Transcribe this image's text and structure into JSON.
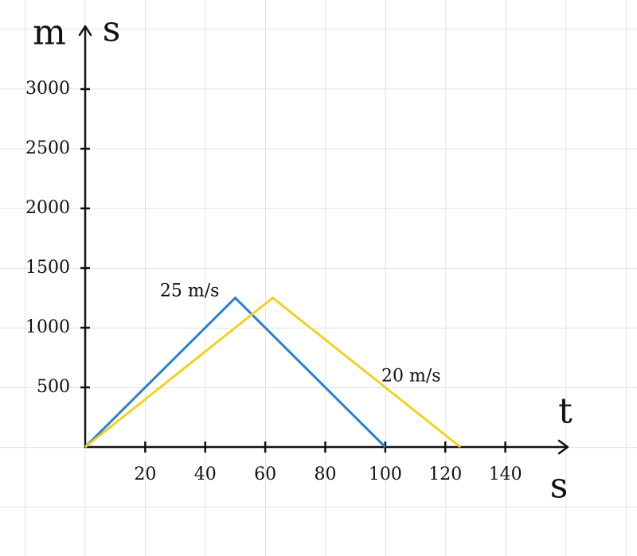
{
  "chart_data": {
    "type": "line",
    "y_unit": "m",
    "y_label": "s",
    "x_label": "t",
    "x_unit": "s",
    "xlim": [
      0,
      160
    ],
    "ylim": [
      0,
      3500
    ],
    "xticks": [
      20,
      40,
      60,
      80,
      100,
      120,
      140
    ],
    "yticks": [
      500,
      1000,
      1500,
      2000,
      2500,
      3000
    ],
    "series": [
      {
        "name": "25 m/s",
        "color": "#2a7fd6",
        "x": [
          0,
          50,
          100
        ],
        "values": [
          0,
          1250,
          0
        ]
      },
      {
        "name": "20 m/s",
        "color": "#f0d21e",
        "x": [
          0,
          62.5,
          125
        ],
        "values": [
          0,
          1250,
          0
        ]
      }
    ]
  }
}
